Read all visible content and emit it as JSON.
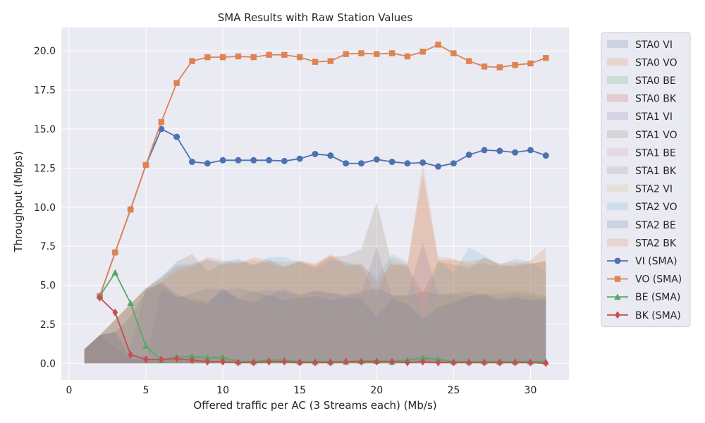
{
  "chart_data": {
    "type": "line",
    "title": "SMA Results with Raw Station Values",
    "xlabel": "Offered traffic per AC (3 Streams each) (Mb/s)",
    "ylabel": "Throughput (Mbps)",
    "xlim": [
      -0.5,
      32.5
    ],
    "ylim": [
      -1.07,
      21.5
    ],
    "xticks": [
      0,
      5,
      10,
      15,
      20,
      25,
      30
    ],
    "yticks": [
      0.0,
      2.5,
      5.0,
      7.5,
      10.0,
      12.5,
      15.0,
      17.5,
      20.0
    ],
    "xtick_labels": [
      "0",
      "5",
      "10",
      "15",
      "20",
      "25",
      "30"
    ],
    "ytick_labels": [
      "0.0",
      "2.5",
      "5.0",
      "7.5",
      "10.0",
      "12.5",
      "15.0",
      "17.5",
      "20.0"
    ],
    "grid": true,
    "legend_position": "outside-right",
    "x": [
      2,
      3,
      4,
      5,
      6,
      7,
      8,
      9,
      10,
      11,
      12,
      13,
      14,
      15,
      16,
      17,
      18,
      19,
      20,
      21,
      22,
      23,
      24,
      25,
      26,
      27,
      28,
      29,
      30,
      31
    ],
    "series": [
      {
        "name": "VI (SMA)",
        "color": "#4c72b0",
        "marker": "circle",
        "values": [
          4.3,
          7.1,
          9.85,
          12.7,
          15.0,
          14.5,
          12.9,
          12.8,
          13.0,
          13.0,
          13.0,
          13.0,
          12.95,
          13.1,
          13.4,
          13.3,
          12.8,
          12.8,
          13.05,
          12.9,
          12.8,
          12.85,
          12.6,
          12.8,
          13.35,
          13.65,
          13.6,
          13.5,
          13.65,
          13.3
        ]
      },
      {
        "name": "VO (SMA)",
        "color": "#dd8452",
        "marker": "square",
        "values": [
          4.3,
          7.1,
          9.85,
          12.7,
          15.45,
          17.95,
          19.35,
          19.6,
          19.6,
          19.65,
          19.6,
          19.75,
          19.75,
          19.6,
          19.3,
          19.35,
          19.8,
          19.85,
          19.8,
          19.85,
          19.65,
          19.95,
          20.4,
          19.85,
          19.35,
          19.0,
          18.95,
          19.1,
          19.2,
          19.55
        ]
      },
      {
        "name": "BE (SMA)",
        "color": "#55a868",
        "marker": "triangle",
        "values": [
          4.3,
          5.8,
          3.85,
          1.1,
          0.2,
          0.4,
          0.45,
          0.35,
          0.4,
          0.1,
          0.1,
          0.2,
          0.2,
          0.1,
          0.1,
          0.1,
          0.1,
          0.15,
          0.15,
          0.1,
          0.2,
          0.35,
          0.25,
          0.1,
          0.1,
          0.1,
          0.1,
          0.1,
          0.1,
          0.1
        ]
      },
      {
        "name": "BK (SMA)",
        "color": "#c44e52",
        "marker": "diamond",
        "values": [
          4.2,
          3.25,
          0.55,
          0.25,
          0.25,
          0.3,
          0.2,
          0.1,
          0.1,
          0.05,
          0.05,
          0.1,
          0.1,
          0.05,
          0.05,
          0.05,
          0.1,
          0.1,
          0.1,
          0.1,
          0.05,
          0.1,
          0.05,
          0.05,
          0.05,
          0.05,
          0.05,
          0.05,
          0.05,
          0.0
        ]
      }
    ],
    "station_areas": {
      "x": [
        1,
        2,
        3,
        4,
        5,
        6,
        7,
        8,
        9,
        10,
        11,
        12,
        13,
        14,
        15,
        16,
        17,
        18,
        19,
        20,
        21,
        22,
        23,
        24,
        25,
        26,
        27,
        28,
        29,
        30,
        31
      ],
      "series": [
        {
          "name": "STA0 VI",
          "color": "#4c72b0",
          "values": [
            0.9,
            1.8,
            2.0,
            0.3,
            0.2,
            4.7,
            4.2,
            4.5,
            4.8,
            4.7,
            4.8,
            4.6,
            4.7,
            4.6,
            4.4,
            4.6,
            4.5,
            4.4,
            4.6,
            4.8,
            4.4,
            4.3,
            4.6,
            4.4,
            4.5,
            4.6,
            4.4,
            4.5,
            4.6,
            4.5,
            4.3
          ]
        },
        {
          "name": "STA0 VO",
          "color": "#dd8452",
          "values": [
            0.9,
            1.8,
            2.8,
            3.8,
            4.8,
            5.4,
            6.2,
            6.3,
            6.8,
            6.6,
            6.4,
            6.8,
            6.6,
            6.5,
            6.5,
            6.3,
            7.0,
            6.4,
            6.2,
            4.3,
            6.8,
            6.3,
            12.8,
            6.8,
            6.7,
            6.3,
            6.4,
            6.2,
            6.3,
            6.6,
            7.4
          ]
        },
        {
          "name": "STA0 BE",
          "color": "#55a868",
          "values": [
            0.9,
            1.8,
            2.0,
            0.3,
            0.2,
            0.2,
            0.4,
            0.4,
            0.3,
            0.4,
            0.2,
            0.2,
            0.3,
            0.2,
            0.2,
            0.2,
            0.2,
            0.2,
            0.2,
            0.2,
            0.2,
            0.3,
            0.4,
            0.3,
            0.2,
            0.2,
            0.2,
            0.2,
            0.2,
            0.2,
            0.2
          ]
        },
        {
          "name": "STA0 BK",
          "color": "#c44e52",
          "values": [
            0.9,
            1.8,
            1.0,
            0.3,
            0.2,
            0.2,
            0.3,
            0.2,
            0.1,
            0.1,
            0.1,
            0.1,
            0.1,
            0.1,
            0.1,
            0.1,
            0.1,
            0.1,
            0.1,
            0.1,
            0.1,
            0.1,
            0.1,
            0.1,
            0.1,
            0.1,
            0.1,
            0.1,
            0.1,
            0.1,
            0.1
          ]
        },
        {
          "name": "STA1 VI",
          "color": "#8172b3",
          "values": [
            0.9,
            1.8,
            2.0,
            1.0,
            4.8,
            5.0,
            4.3,
            4.2,
            4.0,
            4.6,
            4.2,
            4.6,
            4.3,
            4.8,
            4.3,
            4.7,
            4.5,
            4.3,
            4.5,
            7.4,
            4.3,
            4.4,
            7.7,
            4.4,
            4.4,
            4.3,
            4.5,
            4.2,
            4.4,
            4.3,
            4.2
          ]
        },
        {
          "name": "STA1 VO",
          "color": "#937860",
          "values": [
            0.9,
            1.8,
            2.8,
            3.8,
            4.8,
            5.5,
            6.5,
            7.0,
            5.9,
            6.4,
            6.6,
            6.3,
            6.6,
            6.2,
            6.5,
            6.2,
            6.8,
            6.9,
            7.3,
            10.3,
            6.3,
            6.2,
            4.5,
            6.5,
            6.3,
            6.1,
            6.8,
            6.3,
            6.2,
            6.4,
            6.5
          ]
        },
        {
          "name": "STA1 BE",
          "color": "#da8bc3",
          "values": [
            0.9,
            1.8,
            2.0,
            0.5,
            0.3,
            0.2,
            0.4,
            0.4,
            0.4,
            0.4,
            0.1,
            0.2,
            0.2,
            0.2,
            0.1,
            0.1,
            0.1,
            0.2,
            0.1,
            0.1,
            0.1,
            0.2,
            0.4,
            0.3,
            0.1,
            0.1,
            0.1,
            0.1,
            0.1,
            0.1,
            0.1
          ]
        },
        {
          "name": "STA1 BK",
          "color": "#8c8c8c",
          "values": [
            0.9,
            1.8,
            1.0,
            0.5,
            0.3,
            0.2,
            0.3,
            0.2,
            0.1,
            0.1,
            0.1,
            0.1,
            0.1,
            0.1,
            0.1,
            0.1,
            0.1,
            0.1,
            0.1,
            0.1,
            0.1,
            0.1,
            0.1,
            0.1,
            0.1,
            0.1,
            0.1,
            0.1,
            0.1,
            0.1,
            0.1
          ]
        },
        {
          "name": "STA2 VI",
          "color": "#ccb974",
          "values": [
            0.9,
            1.8,
            2.0,
            3.0,
            4.6,
            5.2,
            4.2,
            4.3,
            4.2,
            3.8,
            4.0,
            4.5,
            3.9,
            3.7,
            4.5,
            4.4,
            3.7,
            4.0,
            3.8,
            2.6,
            4.0,
            4.2,
            2.3,
            4.2,
            4.2,
            5.0,
            4.9,
            4.8,
            4.7,
            4.6,
            4.4
          ]
        },
        {
          "name": "STA2 VO",
          "color": "#64b5cd",
          "values": [
            0.9,
            1.8,
            2.8,
            3.8,
            4.8,
            5.6,
            6.3,
            6.4,
            6.6,
            6.5,
            6.7,
            6.3,
            6.8,
            6.8,
            6.5,
            6.0,
            6.6,
            6.5,
            6.3,
            5.5,
            7.0,
            6.5,
            2.9,
            6.6,
            5.8,
            7.4,
            6.9,
            6.3,
            6.7,
            6.5,
            5.9
          ]
        },
        {
          "name": "STA2 BE",
          "color": "#4c72b0",
          "values": [
            0.9,
            1.8,
            2.0,
            3.0,
            4.6,
            5.2,
            4.4,
            4.0,
            3.8,
            4.8,
            4.1,
            3.9,
            4.4,
            4.0,
            4.2,
            4.3,
            4.0,
            4.2,
            4.1,
            3.0,
            4.1,
            3.8,
            2.8,
            3.6,
            3.9,
            4.3,
            4.4,
            4.0,
            4.2,
            4.0,
            4.1
          ]
        },
        {
          "name": "STA2 BK",
          "color": "#dd8452",
          "values": [
            0.9,
            1.8,
            2.8,
            3.8,
            4.8,
            5.2,
            5.9,
            6.2,
            6.7,
            6.3,
            6.4,
            6.6,
            6.4,
            6.1,
            6.6,
            6.4,
            6.9,
            6.2,
            6.4,
            5.2,
            6.4,
            6.3,
            12.0,
            6.6,
            6.6,
            6.5,
            6.7,
            6.4,
            6.5,
            6.3,
            6.6
          ]
        }
      ]
    }
  }
}
